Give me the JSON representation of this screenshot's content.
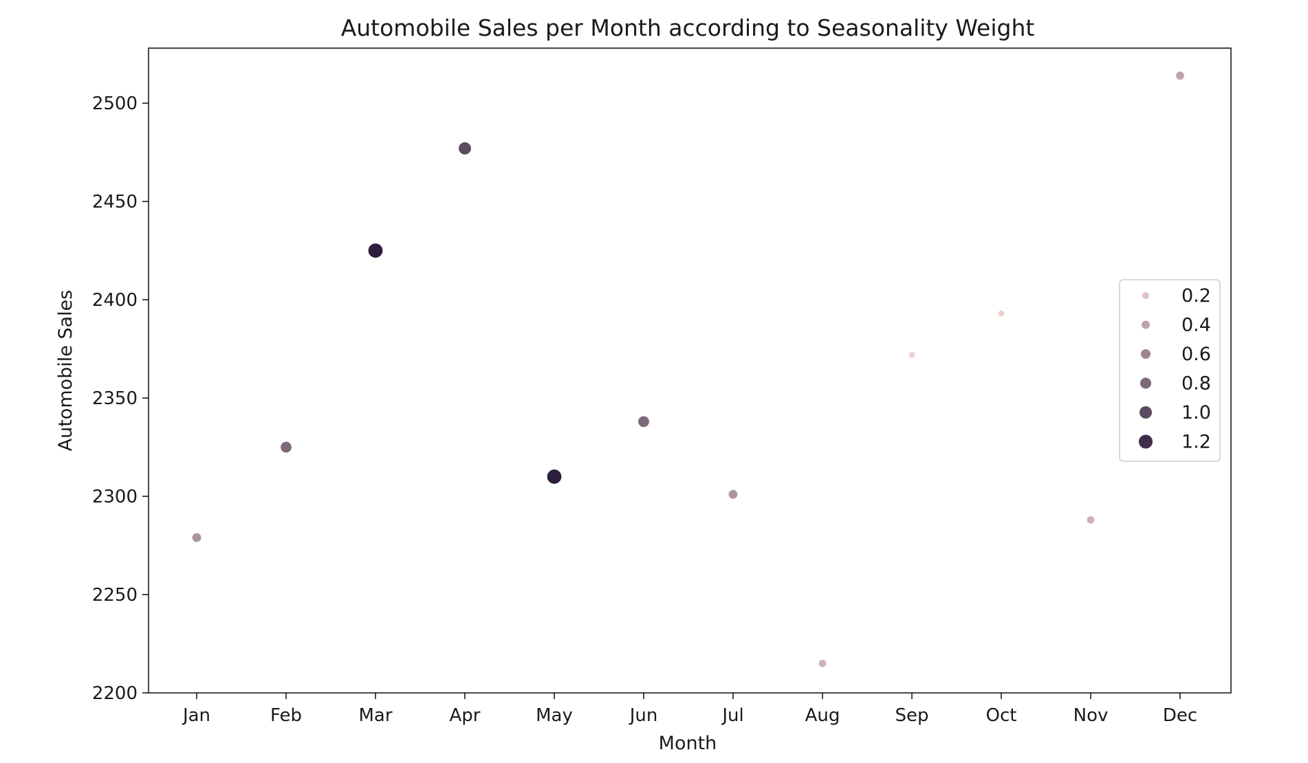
{
  "chart_data": {
    "type": "scatter",
    "title": "Automobile Sales per Month according to Seasonality Weight",
    "xlabel": "Month",
    "ylabel": "Automobile Sales",
    "categories": [
      "Jan",
      "Feb",
      "Mar",
      "Apr",
      "May",
      "Jun",
      "Jul",
      "Aug",
      "Sep",
      "Oct",
      "Nov",
      "Dec"
    ],
    "values": [
      2279,
      2325,
      2425,
      2477,
      2310,
      2338,
      2301,
      2215,
      2372,
      2393,
      2288,
      2514
    ],
    "seasonality_weight": [
      0.5,
      0.8,
      1.3,
      1.0,
      1.3,
      0.8,
      0.5,
      0.3,
      0.1,
      0.1,
      0.3,
      0.4
    ],
    "ylim": [
      2200,
      2528
    ],
    "yticks": [
      2200,
      2250,
      2300,
      2350,
      2400,
      2450,
      2500
    ],
    "grid": false,
    "legend": {
      "placement": "center-right",
      "entries": [
        {
          "label": "0.2",
          "value": 0.2
        },
        {
          "label": "0.4",
          "value": 0.4
        },
        {
          "label": "0.6",
          "value": 0.6
        },
        {
          "label": "0.8",
          "value": 0.8
        },
        {
          "label": "1.0",
          "value": 1.0
        },
        {
          "label": "1.2",
          "value": 1.2
        }
      ]
    },
    "color_range": [
      "#edd1cb",
      "#2d1e3e"
    ]
  }
}
